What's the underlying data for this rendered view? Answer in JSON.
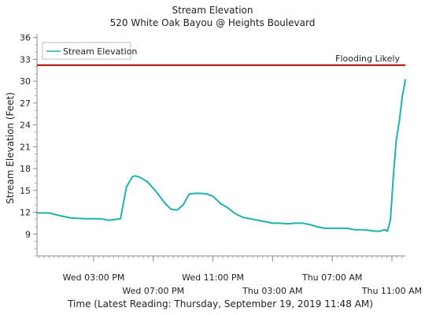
{
  "chart_data": {
    "type": "line",
    "title": "Stream Elevation",
    "subtitle": "520 White Oak Bayou @ Heights Boulevard",
    "xlabel": "Time (Latest Reading: Thursday, September 19, 2019 11:48 AM)",
    "ylabel": "Stream Elevation (Feet)",
    "ylim": [
      6,
      36.5
    ],
    "xlim": [
      11.2,
      35.9
    ],
    "yticks": [
      9,
      12,
      15,
      18,
      21,
      24,
      27,
      30,
      33,
      36
    ],
    "xticks": [
      {
        "x": 15,
        "label": "Wed 03:00 PM",
        "row": 0
      },
      {
        "x": 19,
        "label": "Wed 07:00 PM",
        "row": 1
      },
      {
        "x": 23,
        "label": "Wed 11:00 PM",
        "row": 0
      },
      {
        "x": 27,
        "label": "Thu 03:00 AM",
        "row": 1
      },
      {
        "x": 31,
        "label": "Thu 07:00 AM",
        "row": 0
      },
      {
        "x": 35,
        "label": "Thu 11:00 AM",
        "row": 1
      }
    ],
    "grid": false,
    "legend_position": "top-left",
    "series": [
      {
        "name": "Stream Elevation",
        "color": "#20b2aa",
        "x": [
          11.2,
          12.0,
          12.8,
          13.5,
          14.5,
          15.5,
          16.0,
          16.8,
          17.2,
          17.6,
          17.8,
          18.1,
          18.6,
          19.2,
          19.8,
          20.2,
          20.6,
          21.0,
          21.4,
          21.8,
          22.2,
          22.6,
          23.0,
          23.5,
          24.0,
          24.5,
          25.0,
          25.5,
          26.0,
          26.5,
          27.0,
          27.5,
          28.0,
          28.5,
          29.0,
          29.5,
          30.0,
          30.5,
          31.0,
          31.5,
          32.0,
          32.5,
          33.0,
          33.5,
          33.9,
          34.2,
          34.5,
          34.7,
          34.9,
          35.1,
          35.3,
          35.5,
          35.7,
          35.8,
          35.9
        ],
        "values": [
          11.9,
          11.9,
          11.5,
          11.2,
          11.1,
          11.1,
          10.9,
          11.1,
          15.5,
          16.9,
          17.0,
          16.8,
          16.2,
          14.8,
          13.2,
          12.4,
          12.3,
          13.0,
          14.5,
          14.6,
          14.6,
          14.5,
          14.2,
          13.2,
          12.6,
          11.8,
          11.3,
          11.1,
          10.9,
          10.7,
          10.5,
          10.5,
          10.4,
          10.5,
          10.5,
          10.3,
          10.0,
          9.8,
          9.8,
          9.8,
          9.8,
          9.6,
          9.6,
          9.5,
          9.4,
          9.4,
          9.6,
          9.4,
          11.0,
          17.0,
          22.0,
          24.5,
          28.0,
          29.0,
          30.2
        ]
      }
    ],
    "reference_lines": [
      {
        "y": 32.2,
        "label": "Flooding Likely",
        "color": "#b20000"
      }
    ]
  }
}
